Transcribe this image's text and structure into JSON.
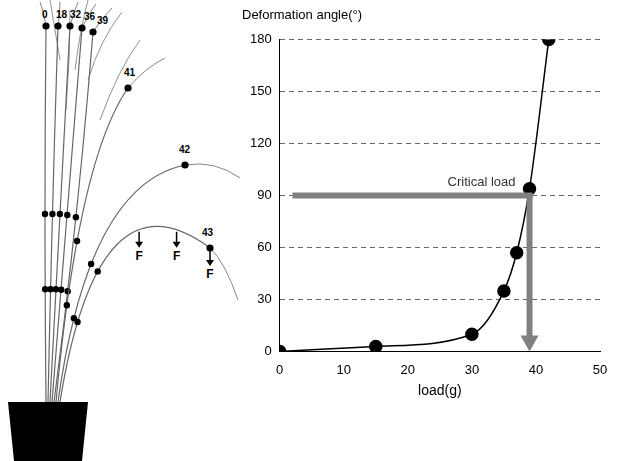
{
  "chart_data": {
    "type": "line",
    "y_label": "Deformation angle(°)",
    "x_label": "load(g)",
    "x": [
      0,
      15,
      30,
      35,
      37,
      39,
      42
    ],
    "values": [
      0,
      3,
      10,
      35,
      57,
      94,
      180
    ],
    "xlim": [
      0,
      50
    ],
    "xticks": [
      0,
      10,
      20,
      30,
      40,
      50
    ],
    "ylim": [
      0,
      180
    ],
    "yticks": [
      0,
      30,
      60,
      90,
      120,
      150,
      180
    ],
    "grid": true,
    "color": "#000000",
    "marker": "circle",
    "line_style": "solid",
    "annotations": [
      {
        "text": "Critical load",
        "x": 39,
        "y": 90,
        "x_start": 2
      }
    ]
  },
  "diagram": {
    "leaf_labels": [
      "0",
      "18",
      "32",
      "36",
      "39",
      "41",
      "42",
      "43"
    ],
    "forces": [
      "F",
      "F",
      "F"
    ]
  }
}
